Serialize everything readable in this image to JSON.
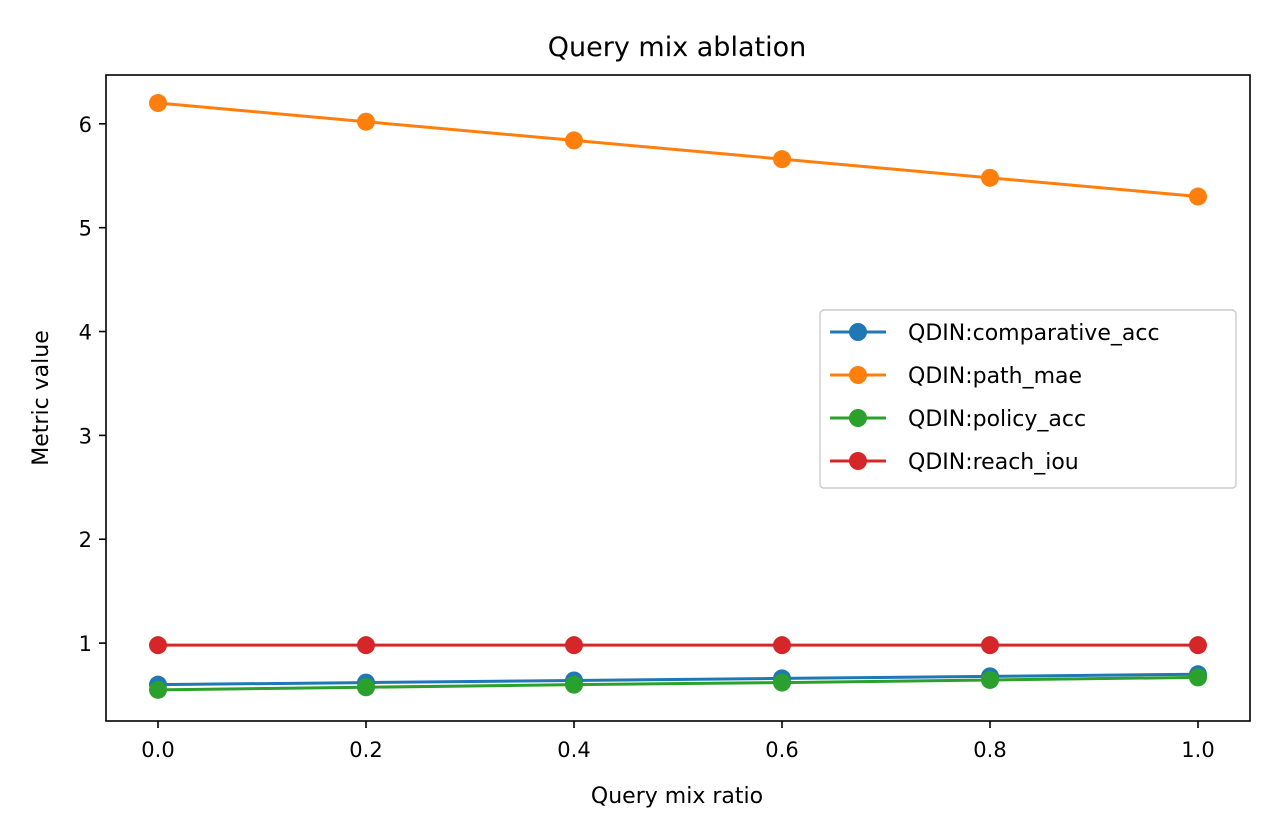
{
  "chart_data": {
    "type": "line",
    "title": "Query mix ablation",
    "xlabel": "Query mix ratio",
    "ylabel": "Metric value",
    "x": [
      0.0,
      0.2,
      0.4,
      0.6,
      0.8,
      1.0
    ],
    "xticks": [
      "0.0",
      "0.2",
      "0.4",
      "0.6",
      "0.8",
      "1.0"
    ],
    "yticks": [
      "1",
      "2",
      "3",
      "4",
      "5",
      "6"
    ],
    "xlim": [
      -0.05,
      1.05
    ],
    "ylim": [
      0.25,
      6.47
    ],
    "grid": false,
    "legend_position": "center-right",
    "series": [
      {
        "name": "QDIN:comparative_acc",
        "color": "#1f77b4",
        "values": [
          0.6,
          0.62,
          0.64,
          0.66,
          0.68,
          0.7
        ]
      },
      {
        "name": "QDIN:path_mae",
        "color": "#ff7f0e",
        "values": [
          6.2,
          6.02,
          5.84,
          5.66,
          5.48,
          5.3
        ]
      },
      {
        "name": "QDIN:policy_acc",
        "color": "#2ca02c",
        "values": [
          0.55,
          0.575,
          0.6,
          0.62,
          0.645,
          0.67
        ]
      },
      {
        "name": "QDIN:reach_iou",
        "color": "#d62728",
        "values": [
          0.98,
          0.98,
          0.98,
          0.98,
          0.98,
          0.98
        ]
      }
    ]
  }
}
